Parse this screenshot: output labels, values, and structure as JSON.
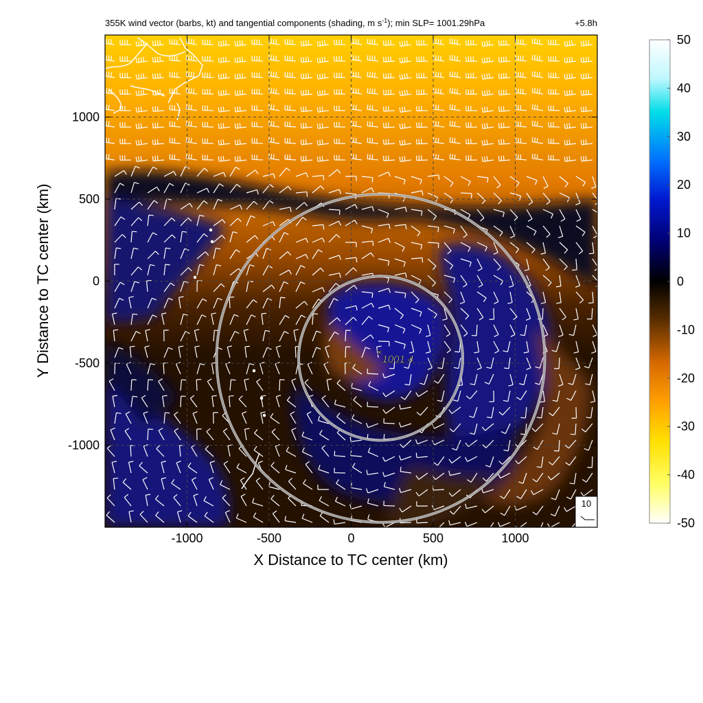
{
  "title": "355K wind vector (barbs, kt) and tangential components (shading, m s",
  "title_sup": "-1",
  "title_tail": "); min SLP= 1001.29hPa",
  "lead_time": "+5.8h",
  "chart_data": {
    "type": "heatmap",
    "xlabel": "X Distance to TC center (km)",
    "ylabel": "Y Distance to TC center (km)",
    "xlim": [
      -1500,
      1500
    ],
    "ylim": [
      -1500,
      1500
    ],
    "xticks": [
      -1000,
      -500,
      0,
      500,
      1000
    ],
    "yticks": [
      -1000,
      -500,
      0,
      500,
      1000
    ],
    "xtick_labels": [
      "-1000",
      "-500",
      "0",
      "500",
      "1000"
    ],
    "ytick_labels": [
      "-1000",
      "-500",
      "0",
      "500",
      "1000"
    ],
    "grid": true,
    "colorbar": {
      "min": -50,
      "max": 50,
      "ticks": [
        50,
        40,
        30,
        20,
        10,
        0,
        -10,
        -20,
        -30,
        -40,
        -50
      ],
      "tick_labels": [
        "50",
        "40",
        "30",
        "20",
        "10",
        "0",
        "-10",
        "-20",
        "-30",
        "-40",
        "-50"
      ],
      "colors": [
        "#ffffff",
        "#00e5e5",
        "#0060ff",
        "#0000c0",
        "#00005a",
        "#000000",
        "#5a2e00",
        "#e07000",
        "#ffc000",
        "#ffff33",
        "#ffffff"
      ]
    },
    "center": {
      "x": 180,
      "y": -470,
      "label": "1001.4"
    },
    "range_rings_km": [
      500,
      1000
    ],
    "barb_reference": {
      "value": "10"
    }
  },
  "colors": {
    "ring": "#bdbdbd",
    "barb": "#ffffff",
    "coast": "#ffffff"
  }
}
